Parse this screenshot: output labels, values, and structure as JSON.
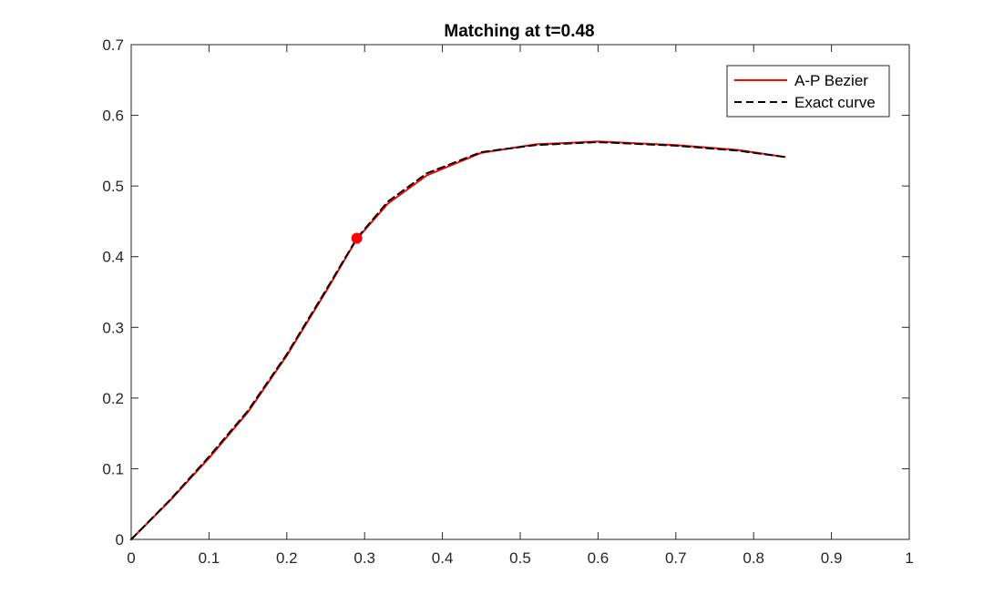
{
  "chart_data": {
    "type": "line",
    "title": "Matching at t=0.48",
    "xlabel": "",
    "ylabel": "",
    "xlim": [
      0,
      1
    ],
    "ylim": [
      0,
      0.7
    ],
    "xticks": [
      "0",
      "0.1",
      "0.2",
      "0.3",
      "0.4",
      "0.5",
      "0.6",
      "0.7",
      "0.8",
      "0.9",
      "1"
    ],
    "yticks": [
      "0",
      "0.1",
      "0.2",
      "0.3",
      "0.4",
      "0.5",
      "0.6",
      "0.7"
    ],
    "grid": false,
    "legend_position": "top-right",
    "series": [
      {
        "name": "A-P Bezier",
        "color": "#ff0000",
        "style": "solid",
        "x": [
          0,
          0.05,
          0.1,
          0.15,
          0.2,
          0.25,
          0.29,
          0.33,
          0.38,
          0.45,
          0.52,
          0.6,
          0.7,
          0.78,
          0.84
        ],
        "y": [
          0,
          0.055,
          0.115,
          0.18,
          0.26,
          0.35,
          0.425,
          0.475,
          0.515,
          0.547,
          0.559,
          0.563,
          0.558,
          0.551,
          0.541
        ]
      },
      {
        "name": "Exact curve",
        "color": "#000000",
        "style": "dashed",
        "x": [
          0,
          0.05,
          0.1,
          0.15,
          0.2,
          0.25,
          0.29,
          0.33,
          0.38,
          0.45,
          0.52,
          0.6,
          0.7,
          0.78,
          0.84
        ],
        "y": [
          0,
          0.056,
          0.117,
          0.182,
          0.262,
          0.352,
          0.426,
          0.478,
          0.518,
          0.548,
          0.558,
          0.562,
          0.557,
          0.55,
          0.541
        ]
      }
    ],
    "markers": [
      {
        "x": 0.29,
        "y": 0.426,
        "color": "#ff0000"
      }
    ]
  }
}
